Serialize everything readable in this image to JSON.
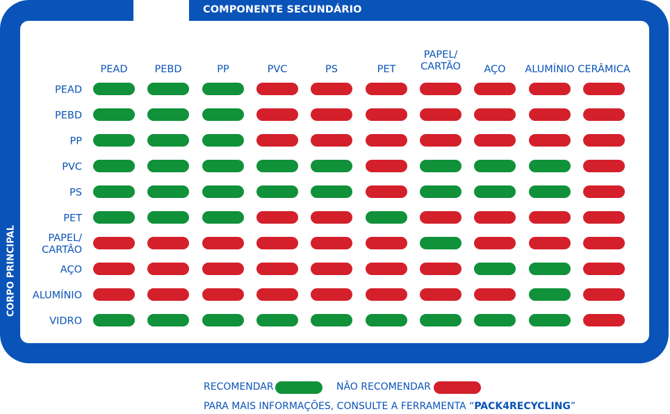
{
  "frame": {
    "secondary_title": "COMPONENTE SECUNDÁRIO",
    "principal_title": "CORPO PRINCIPAL"
  },
  "colors": {
    "frame": "#0a53b8",
    "recommend": "#10913a",
    "not_recommend": "#d4202b"
  },
  "chart_data": {
    "type": "table",
    "columns": [
      "PEAD",
      "PEBD",
      "PP",
      "PVC",
      "PS",
      "PET",
      "PAPEL/\nCARTÃO",
      "AÇO",
      "ALUMÍNIO",
      "CERÂMICA"
    ],
    "rows": [
      "PEAD",
      "PEBD",
      "PP",
      "PVC",
      "PS",
      "PET",
      "PAPEL/\nCARTÃO",
      "AÇO",
      "ALUMÍNIO",
      "VIDRO"
    ],
    "values": [
      [
        1,
        1,
        1,
        0,
        0,
        0,
        0,
        0,
        0,
        0
      ],
      [
        1,
        1,
        1,
        0,
        0,
        0,
        0,
        0,
        0,
        0
      ],
      [
        1,
        1,
        1,
        0,
        0,
        0,
        0,
        0,
        0,
        0
      ],
      [
        1,
        1,
        1,
        1,
        1,
        0,
        1,
        1,
        1,
        0
      ],
      [
        1,
        1,
        1,
        1,
        1,
        0,
        1,
        1,
        1,
        0
      ],
      [
        1,
        1,
        1,
        0,
        0,
        1,
        0,
        0,
        0,
        0
      ],
      [
        0,
        0,
        0,
        0,
        0,
        0,
        1,
        0,
        0,
        0
      ],
      [
        0,
        0,
        0,
        0,
        0,
        0,
        0,
        1,
        1,
        0
      ],
      [
        0,
        0,
        0,
        0,
        0,
        0,
        0,
        0,
        1,
        0
      ],
      [
        1,
        1,
        1,
        1,
        1,
        1,
        1,
        1,
        1,
        0
      ]
    ]
  },
  "legend": {
    "recommend_label": "RECOMENDAR",
    "not_recommend_label": "NÃO RECOMENDAR"
  },
  "note": {
    "prefix": "PARA MAIS INFORMAÇÕES, CONSULTE A FERRAMENTA “",
    "tool": "PACK4RECYCLING",
    "suffix": "”"
  }
}
